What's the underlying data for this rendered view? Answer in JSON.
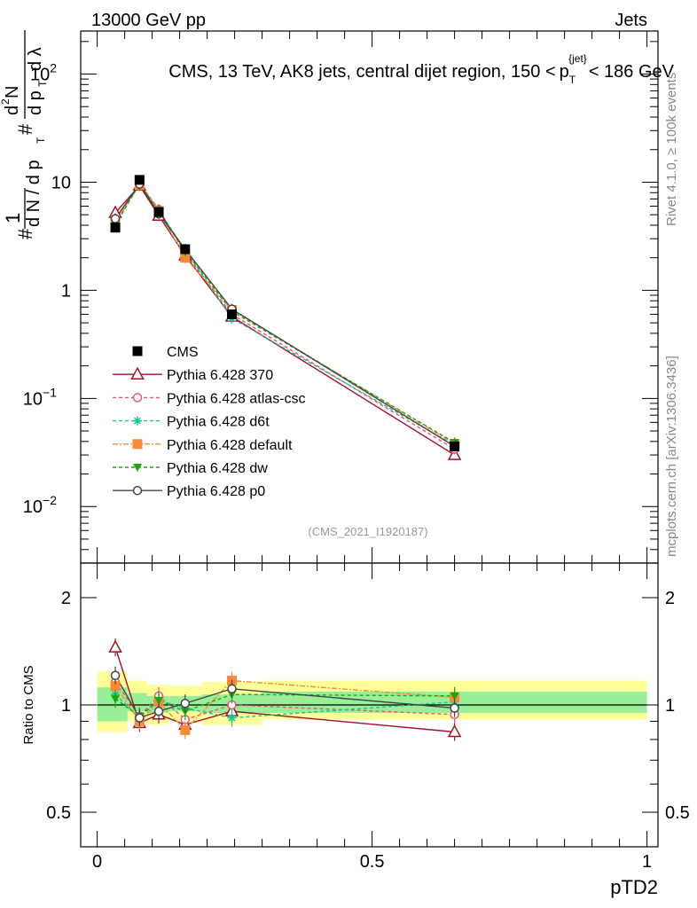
{
  "header": {
    "left": "13000 GeV pp",
    "right": "Jets"
  },
  "side_labels": {
    "rivet": "Rivet 4.1.0, ≥ 100k events",
    "mcplots": "mcplots.cern.ch [arXiv:1306.3436]"
  },
  "chart_data": [
    {
      "type": "line",
      "title": "CMS, 13 TeV, AK8 jets, central dijet region, 150 <",
      "title_math": "p",
      "title_sub": "T",
      "title_sup": "{jet}",
      "title_end": "< 186 GeV",
      "watermark": "(CMS_2021_I1920187)",
      "ylabel": "1/dN/dp_T  d²N/dp_T dλ",
      "ylabel_parts": {
        "hash1": "#",
        "one": "1",
        "dn": "d N / d p",
        "dn_sub": "T",
        "hash2": "#",
        "d2n": "d",
        "d2n_sup": "2",
        "d2n_N": "N",
        "dp": "d p",
        "dp_sub": "T",
        "dlambda": "d λ"
      },
      "yscale": "log",
      "ylim": [
        0.003,
        250
      ],
      "xlim": [
        -0.03,
        1.02
      ],
      "yticks": [
        {
          "value": 0.01,
          "label": "10",
          "exp": "−2"
        },
        {
          "value": 0.1,
          "label": "10",
          "exp": "−1"
        },
        {
          "value": 1,
          "label": "1",
          "exp": ""
        },
        {
          "value": 10,
          "label": "10",
          "exp": ""
        },
        {
          "value": 100,
          "label": "10",
          "exp": "2"
        }
      ],
      "x": [
        0.033,
        0.077,
        0.112,
        0.16,
        0.245,
        0.65
      ],
      "data": {
        "name": "CMS",
        "values": [
          3.8,
          10.5,
          5.3,
          2.4,
          0.6,
          0.036
        ],
        "color": "#000000"
      },
      "series": [
        {
          "name": "Pythia 6.428 370",
          "values": [
            5.2,
            9.3,
            4.9,
            2.1,
            0.57,
            0.03
          ],
          "color": "#a5102a",
          "marker": "triangle-open",
          "dash": ""
        },
        {
          "name": "Pythia 6.428 atlas-csc",
          "values": [
            4.4,
            9.8,
            5.6,
            2.2,
            0.6,
            0.034
          ],
          "color": "#e8556e",
          "marker": "circle-open",
          "dash": "4,3"
        },
        {
          "name": "Pythia 6.428 d6t",
          "values": [
            4.1,
            9.6,
            5.5,
            2.35,
            0.55,
            0.037
          ],
          "color": "#19c39a",
          "marker": "star",
          "dash": "4,3"
        },
        {
          "name": "Pythia 6.428 default",
          "values": [
            4.3,
            9.4,
            5.4,
            2.0,
            0.66,
            0.038
          ],
          "color": "#f78a36",
          "marker": "square",
          "dash": "6,2,2,2"
        },
        {
          "name": "Pythia 6.428 dw",
          "values": [
            4.0,
            9.7,
            5.45,
            2.3,
            0.64,
            0.039
          ],
          "color": "#22a40f",
          "marker": "triangle-down",
          "dash": "4,3"
        },
        {
          "name": "Pythia 6.428 p0",
          "values": [
            4.6,
            9.6,
            5.1,
            2.4,
            0.67,
            0.036
          ],
          "color": "#444444",
          "marker": "circle-open",
          "dash": ""
        }
      ]
    },
    {
      "type": "line",
      "ylabel": "Ratio to CMS",
      "xlabel": "pTD2",
      "yscale": "log",
      "ylim": [
        0.4,
        2.5
      ],
      "xlim": [
        -0.03,
        1.02
      ],
      "yticks": [
        {
          "value": 0.5,
          "label": "0.5"
        },
        {
          "value": 1,
          "label": "1"
        },
        {
          "value": 2,
          "label": "2"
        }
      ],
      "xticks": [
        {
          "value": 0,
          "label": "0"
        },
        {
          "value": 0.5,
          "label": "0.5"
        },
        {
          "value": 1,
          "label": "1"
        }
      ],
      "bands": [
        {
          "x0": 0.0,
          "x1": 0.055,
          "yellow": [
            0.84,
            1.24
          ],
          "green": [
            0.9,
            1.12
          ]
        },
        {
          "x0": 0.055,
          "x1": 0.09,
          "yellow": [
            0.9,
            1.17
          ],
          "green": [
            0.96,
            1.08
          ]
        },
        {
          "x0": 0.09,
          "x1": 0.13,
          "yellow": [
            0.88,
            1.14
          ],
          "green": [
            0.95,
            1.06
          ]
        },
        {
          "x0": 0.13,
          "x1": 0.19,
          "yellow": [
            0.9,
            1.13
          ],
          "green": [
            0.96,
            1.06
          ]
        },
        {
          "x0": 0.19,
          "x1": 0.3,
          "yellow": [
            0.88,
            1.16
          ],
          "green": [
            0.95,
            1.07
          ]
        },
        {
          "x0": 0.3,
          "x1": 1.0,
          "yellow": [
            0.91,
            1.17
          ],
          "green": [
            0.95,
            1.09
          ]
        }
      ],
      "x": [
        0.033,
        0.077,
        0.112,
        0.16,
        0.245,
        0.65
      ],
      "series": [
        {
          "name": "Pythia 6.428 370",
          "values": [
            1.45,
            0.89,
            0.94,
            0.88,
            0.96,
            0.84
          ],
          "color": "#a5102a"
        },
        {
          "name": "Pythia 6.428 atlas-csc",
          "values": [
            1.16,
            0.93,
            1.06,
            0.91,
            1.0,
            0.94
          ],
          "color": "#e8556e"
        },
        {
          "name": "Pythia 6.428 d6t",
          "values": [
            1.07,
            0.92,
            1.03,
            0.98,
            0.92,
            1.02
          ],
          "color": "#19c39a"
        },
        {
          "name": "Pythia 6.428 default",
          "values": [
            1.13,
            0.9,
            1.02,
            0.85,
            1.17,
            1.05
          ],
          "color": "#f78a36"
        },
        {
          "name": "Pythia 6.428 dw",
          "values": [
            1.04,
            0.93,
            1.03,
            0.96,
            1.07,
            1.06
          ],
          "color": "#22a40f"
        },
        {
          "name": "Pythia 6.428 p0",
          "values": [
            1.21,
            0.92,
            0.96,
            1.01,
            1.11,
            0.98
          ],
          "color": "#444444"
        }
      ]
    }
  ]
}
